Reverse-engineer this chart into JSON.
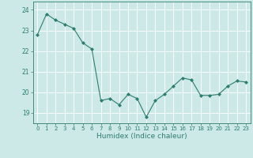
{
  "xlabel": "Humidex (Indice chaleur)",
  "x": [
    0,
    1,
    2,
    3,
    4,
    5,
    6,
    7,
    8,
    9,
    10,
    11,
    12,
    13,
    14,
    15,
    16,
    17,
    18,
    19,
    20,
    21,
    22,
    23
  ],
  "y": [
    22.8,
    23.8,
    23.5,
    23.3,
    23.1,
    22.4,
    22.1,
    19.6,
    19.7,
    19.4,
    19.9,
    19.7,
    18.8,
    19.6,
    19.9,
    20.3,
    20.7,
    20.6,
    19.85,
    19.85,
    19.9,
    20.3,
    20.55,
    20.5
  ],
  "line_color": "#2e7d6e",
  "marker": "D",
  "marker_size": 2,
  "background_color": "#cce9e7",
  "grid_color": "#ffffff",
  "ylim": [
    18.5,
    24.4
  ],
  "yticks": [
    19,
    20,
    21,
    22,
    23,
    24
  ],
  "xlim": [
    -0.5,
    23.5
  ],
  "tick_color": "#2e7d6e",
  "label_color": "#2e7d6e",
  "axis_color": "#2e7d6e",
  "xlabel_fontsize": 6.5,
  "ytick_fontsize": 5.5,
  "xtick_fontsize": 5.0
}
